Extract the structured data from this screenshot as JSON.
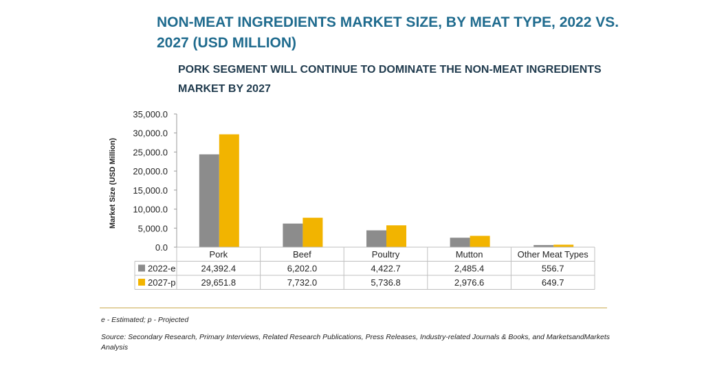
{
  "title": "NON-MEAT INGREDIENTS MARKET SIZE, BY MEAT TYPE, 2022 VS. 2027 (USD MILLION)",
  "subtitle": "PORK SEGMENT WILL CONTINUE TO DOMINATE THE NON-MEAT INGREDIENTS MARKET BY 2027",
  "notes": {
    "legend_note": "e - Estimated; p - Projected",
    "source": "Source: Secondary Research, Primary Interviews, Related Research Publications, Press Releases, Industry-related Journals & Books, and MarketsandMarkets Analysis"
  },
  "colors": {
    "series_2022": "#8c8c8c",
    "series_2027": "#f2b400",
    "grid": "#bfbfbf",
    "rule": "#c9a84a"
  },
  "chart_data": {
    "type": "bar",
    "title": "NON-MEAT INGREDIENTS MARKET SIZE, BY MEAT TYPE, 2022 VS. 2027 (USD MILLION)",
    "ylabel": "Market Size (USD Million)",
    "xlabel": "",
    "ylim": [
      0,
      35000
    ],
    "ytick_labels": [
      "0.0",
      "5,000.0",
      "10,000.0",
      "15,000.0",
      "20,000.0",
      "25,000.0",
      "30,000.0",
      "35,000.0"
    ],
    "categories": [
      "Pork",
      "Beef",
      "Poultry",
      "Mutton",
      "Other Meat Types"
    ],
    "series": [
      {
        "name": "2022-e",
        "values": [
          24392.4,
          6202.0,
          4422.7,
          2485.4,
          556.7
        ],
        "labels": [
          "24,392.4",
          "6,202.0",
          "4,422.7",
          "2,485.4",
          "556.7"
        ]
      },
      {
        "name": "2027-p",
        "values": [
          29651.8,
          7732.0,
          5736.8,
          2976.6,
          649.7
        ],
        "labels": [
          "29,651.8",
          "7,732.0",
          "5,736.8",
          "2,976.6",
          "649.7"
        ]
      }
    ],
    "data_table": true
  }
}
